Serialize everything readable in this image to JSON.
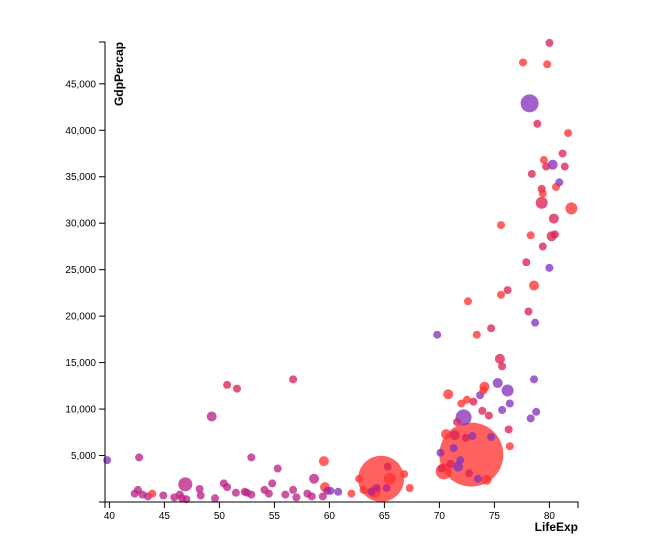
{
  "chart_data": {
    "type": "scatter",
    "title": "",
    "xlabel": "LifeExp",
    "ylabel": "GdpPercap",
    "xlim": [
      39.6,
      82.6
    ],
    "ylim": [
      0,
      49500
    ],
    "x_ticks": [
      40,
      45,
      50,
      55,
      60,
      65,
      70,
      75,
      80
    ],
    "y_ticks": [
      5000,
      10000,
      15000,
      20000,
      25000,
      30000,
      35000,
      40000,
      45000
    ],
    "x_tick_labels": [
      "40",
      "45",
      "50",
      "55",
      "60",
      "65",
      "70",
      "75",
      "80"
    ],
    "y_tick_labels": [
      "5,000",
      "10,000",
      "15,000",
      "20,000",
      "25,000",
      "30,000",
      "35,000",
      "40,000",
      "45,000"
    ],
    "grid": false,
    "legend": "none",
    "colors": {
      "red": "#ff3333",
      "crimson": "#dd2255",
      "magenta": "#bb2288",
      "purple": "#8833bb"
    },
    "points": [
      {
        "x": 39.8,
        "y": 4500,
        "size": 4,
        "color": "purple"
      },
      {
        "x": 42.3,
        "y": 900,
        "size": 4,
        "color": "magenta"
      },
      {
        "x": 42.6,
        "y": 1300,
        "size": 4,
        "color": "magenta"
      },
      {
        "x": 42.7,
        "y": 4800,
        "size": 4,
        "color": "magenta"
      },
      {
        "x": 43.0,
        "y": 800,
        "size": 4,
        "color": "magenta"
      },
      {
        "x": 43.5,
        "y": 600,
        "size": 4,
        "color": "magenta"
      },
      {
        "x": 43.9,
        "y": 900,
        "size": 4,
        "color": "red"
      },
      {
        "x": 44.9,
        "y": 700,
        "size": 4,
        "color": "magenta"
      },
      {
        "x": 45.9,
        "y": 500,
        "size": 4,
        "color": "magenta"
      },
      {
        "x": 46.4,
        "y": 800,
        "size": 4,
        "color": "magenta"
      },
      {
        "x": 46.6,
        "y": 400,
        "size": 4,
        "color": "magenta"
      },
      {
        "x": 46.9,
        "y": 1900,
        "size": 7,
        "color": "magenta"
      },
      {
        "x": 47.0,
        "y": 300,
        "size": 4,
        "color": "magenta"
      },
      {
        "x": 48.2,
        "y": 1400,
        "size": 4,
        "color": "magenta"
      },
      {
        "x": 48.3,
        "y": 700,
        "size": 4,
        "color": "magenta"
      },
      {
        "x": 49.3,
        "y": 9200,
        "size": 5,
        "color": "magenta"
      },
      {
        "x": 49.6,
        "y": 400,
        "size": 4,
        "color": "magenta"
      },
      {
        "x": 50.4,
        "y": 2000,
        "size": 4,
        "color": "magenta"
      },
      {
        "x": 50.7,
        "y": 1600,
        "size": 4,
        "color": "magenta"
      },
      {
        "x": 50.7,
        "y": 12600,
        "size": 4,
        "color": "crimson"
      },
      {
        "x": 51.5,
        "y": 1000,
        "size": 4,
        "color": "magenta"
      },
      {
        "x": 51.6,
        "y": 12200,
        "size": 4,
        "color": "crimson"
      },
      {
        "x": 52.3,
        "y": 1100,
        "size": 4,
        "color": "magenta"
      },
      {
        "x": 52.5,
        "y": 1000,
        "size": 4,
        "color": "magenta"
      },
      {
        "x": 52.9,
        "y": 800,
        "size": 4,
        "color": "magenta"
      },
      {
        "x": 52.9,
        "y": 4800,
        "size": 4,
        "color": "magenta"
      },
      {
        "x": 54.1,
        "y": 1300,
        "size": 4,
        "color": "magenta"
      },
      {
        "x": 54.5,
        "y": 900,
        "size": 4,
        "color": "magenta"
      },
      {
        "x": 54.8,
        "y": 2000,
        "size": 4,
        "color": "magenta"
      },
      {
        "x": 55.3,
        "y": 3600,
        "size": 4,
        "color": "magenta"
      },
      {
        "x": 56.0,
        "y": 800,
        "size": 4,
        "color": "magenta"
      },
      {
        "x": 56.7,
        "y": 13200,
        "size": 4,
        "color": "crimson"
      },
      {
        "x": 56.7,
        "y": 1300,
        "size": 4,
        "color": "magenta"
      },
      {
        "x": 57.0,
        "y": 500,
        "size": 4,
        "color": "magenta"
      },
      {
        "x": 58.0,
        "y": 900,
        "size": 4,
        "color": "magenta"
      },
      {
        "x": 58.4,
        "y": 600,
        "size": 4,
        "color": "magenta"
      },
      {
        "x": 58.6,
        "y": 2500,
        "size": 5,
        "color": "magenta"
      },
      {
        "x": 59.4,
        "y": 600,
        "size": 4,
        "color": "magenta"
      },
      {
        "x": 59.5,
        "y": 4400,
        "size": 5,
        "color": "red"
      },
      {
        "x": 59.6,
        "y": 1600,
        "size": 5,
        "color": "red"
      },
      {
        "x": 59.8,
        "y": 1200,
        "size": 4,
        "color": "magenta"
      },
      {
        "x": 60.1,
        "y": 1200,
        "size": 4,
        "color": "purple"
      },
      {
        "x": 60.8,
        "y": 1100,
        "size": 4,
        "color": "purple"
      },
      {
        "x": 62.0,
        "y": 900,
        "size": 4,
        "color": "red"
      },
      {
        "x": 62.7,
        "y": 2500,
        "size": 4,
        "color": "red"
      },
      {
        "x": 63.1,
        "y": 1300,
        "size": 4,
        "color": "red"
      },
      {
        "x": 63.8,
        "y": 1100,
        "size": 4,
        "color": "magenta"
      },
      {
        "x": 64.1,
        "y": 1100,
        "size": 6,
        "color": "red"
      },
      {
        "x": 64.3,
        "y": 1500,
        "size": 4,
        "color": "magenta"
      },
      {
        "x": 64.7,
        "y": 2500,
        "size": 23,
        "color": "red"
      },
      {
        "x": 65.2,
        "y": 1500,
        "size": 4,
        "color": "magenta"
      },
      {
        "x": 65.3,
        "y": 3800,
        "size": 4,
        "color": "crimson"
      },
      {
        "x": 65.5,
        "y": 2500,
        "size": 6,
        "color": "red"
      },
      {
        "x": 66.8,
        "y": 3000,
        "size": 4,
        "color": "red"
      },
      {
        "x": 67.3,
        "y": 1500,
        "size": 4,
        "color": "red"
      },
      {
        "x": 69.8,
        "y": 18000,
        "size": 4,
        "color": "purple"
      },
      {
        "x": 70.1,
        "y": 5300,
        "size": 4,
        "color": "purple"
      },
      {
        "x": 70.2,
        "y": 3600,
        "size": 4,
        "color": "crimson"
      },
      {
        "x": 70.4,
        "y": 3300,
        "size": 8,
        "color": "red"
      },
      {
        "x": 70.6,
        "y": 7300,
        "size": 5,
        "color": "red"
      },
      {
        "x": 70.8,
        "y": 11600,
        "size": 5,
        "color": "red"
      },
      {
        "x": 71.0,
        "y": 4100,
        "size": 4,
        "color": "crimson"
      },
      {
        "x": 71.3,
        "y": 5800,
        "size": 4,
        "color": "purple"
      },
      {
        "x": 71.4,
        "y": 7200,
        "size": 5,
        "color": "crimson"
      },
      {
        "x": 71.6,
        "y": 8600,
        "size": 4,
        "color": "crimson"
      },
      {
        "x": 71.7,
        "y": 3800,
        "size": 5,
        "color": "purple"
      },
      {
        "x": 71.9,
        "y": 4500,
        "size": 4,
        "color": "purple"
      },
      {
        "x": 72.0,
        "y": 10600,
        "size": 4,
        "color": "red"
      },
      {
        "x": 72.2,
        "y": 9100,
        "size": 8,
        "color": "purple"
      },
      {
        "x": 72.4,
        "y": 6900,
        "size": 4,
        "color": "crimson"
      },
      {
        "x": 72.5,
        "y": 11000,
        "size": 4,
        "color": "red"
      },
      {
        "x": 72.6,
        "y": 21600,
        "size": 4,
        "color": "red"
      },
      {
        "x": 72.7,
        "y": 3100,
        "size": 4,
        "color": "crimson"
      },
      {
        "x": 72.9,
        "y": 5100,
        "size": 32,
        "color": "red"
      },
      {
        "x": 73.0,
        "y": 7100,
        "size": 4,
        "color": "purple"
      },
      {
        "x": 73.1,
        "y": 10800,
        "size": 4,
        "color": "crimson"
      },
      {
        "x": 73.4,
        "y": 18000,
        "size": 4,
        "color": "red"
      },
      {
        "x": 73.5,
        "y": 2500,
        "size": 4,
        "color": "purple"
      },
      {
        "x": 73.7,
        "y": 11500,
        "size": 4,
        "color": "purple"
      },
      {
        "x": 73.9,
        "y": 9800,
        "size": 4,
        "color": "crimson"
      },
      {
        "x": 74.0,
        "y": 12000,
        "size": 4,
        "color": "red"
      },
      {
        "x": 74.1,
        "y": 12400,
        "size": 5,
        "color": "red"
      },
      {
        "x": 74.3,
        "y": 2400,
        "size": 5,
        "color": "red"
      },
      {
        "x": 74.5,
        "y": 9300,
        "size": 4,
        "color": "crimson"
      },
      {
        "x": 74.7,
        "y": 7000,
        "size": 4,
        "color": "purple"
      },
      {
        "x": 74.7,
        "y": 18700,
        "size": 4,
        "color": "crimson"
      },
      {
        "x": 75.3,
        "y": 12800,
        "size": 5,
        "color": "purple"
      },
      {
        "x": 75.5,
        "y": 15400,
        "size": 5,
        "color": "crimson"
      },
      {
        "x": 75.6,
        "y": 29800,
        "size": 4,
        "color": "red"
      },
      {
        "x": 75.6,
        "y": 22300,
        "size": 4,
        "color": "red"
      },
      {
        "x": 75.7,
        "y": 14600,
        "size": 4,
        "color": "crimson"
      },
      {
        "x": 75.7,
        "y": 9900,
        "size": 4,
        "color": "purple"
      },
      {
        "x": 76.2,
        "y": 12000,
        "size": 6,
        "color": "purple"
      },
      {
        "x": 76.2,
        "y": 22800,
        "size": 4,
        "color": "crimson"
      },
      {
        "x": 76.3,
        "y": 7800,
        "size": 4,
        "color": "crimson"
      },
      {
        "x": 76.4,
        "y": 10600,
        "size": 4,
        "color": "purple"
      },
      {
        "x": 76.4,
        "y": 6000,
        "size": 4,
        "color": "red"
      },
      {
        "x": 77.6,
        "y": 47300,
        "size": 4,
        "color": "red"
      },
      {
        "x": 77.9,
        "y": 25800,
        "size": 4,
        "color": "crimson"
      },
      {
        "x": 78.1,
        "y": 20500,
        "size": 4,
        "color": "crimson"
      },
      {
        "x": 78.2,
        "y": 42900,
        "size": 9,
        "color": "purple"
      },
      {
        "x": 78.3,
        "y": 28700,
        "size": 4,
        "color": "red"
      },
      {
        "x": 78.3,
        "y": 9000,
        "size": 4,
        "color": "purple"
      },
      {
        "x": 78.4,
        "y": 35300,
        "size": 4,
        "color": "crimson"
      },
      {
        "x": 78.6,
        "y": 23300,
        "size": 5,
        "color": "red"
      },
      {
        "x": 78.6,
        "y": 13200,
        "size": 4,
        "color": "purple"
      },
      {
        "x": 78.7,
        "y": 19300,
        "size": 4,
        "color": "purple"
      },
      {
        "x": 78.8,
        "y": 9700,
        "size": 4,
        "color": "purple"
      },
      {
        "x": 78.9,
        "y": 40700,
        "size": 4,
        "color": "crimson"
      },
      {
        "x": 79.3,
        "y": 33700,
        "size": 4,
        "color": "crimson"
      },
      {
        "x": 79.3,
        "y": 32200,
        "size": 6,
        "color": "crimson"
      },
      {
        "x": 79.4,
        "y": 33200,
        "size": 4,
        "color": "red"
      },
      {
        "x": 79.4,
        "y": 27500,
        "size": 4,
        "color": "crimson"
      },
      {
        "x": 79.5,
        "y": 36800,
        "size": 4,
        "color": "red"
      },
      {
        "x": 79.7,
        "y": 36100,
        "size": 4,
        "color": "crimson"
      },
      {
        "x": 79.8,
        "y": 47100,
        "size": 4,
        "color": "red"
      },
      {
        "x": 80.0,
        "y": 49400,
        "size": 4,
        "color": "crimson"
      },
      {
        "x": 80.0,
        "y": 25200,
        "size": 4,
        "color": "purple"
      },
      {
        "x": 80.2,
        "y": 28600,
        "size": 5,
        "color": "crimson"
      },
      {
        "x": 80.3,
        "y": 36300,
        "size": 5,
        "color": "purple"
      },
      {
        "x": 80.4,
        "y": 30500,
        "size": 5,
        "color": "crimson"
      },
      {
        "x": 80.5,
        "y": 28800,
        "size": 4,
        "color": "crimson"
      },
      {
        "x": 80.6,
        "y": 33900,
        "size": 4,
        "color": "red"
      },
      {
        "x": 80.9,
        "y": 34400,
        "size": 4,
        "color": "purple"
      },
      {
        "x": 81.2,
        "y": 37500,
        "size": 4,
        "color": "crimson"
      },
      {
        "x": 81.4,
        "y": 36100,
        "size": 4,
        "color": "crimson"
      },
      {
        "x": 81.7,
        "y": 39700,
        "size": 4,
        "color": "red"
      },
      {
        "x": 82.0,
        "y": 31600,
        "size": 6,
        "color": "red"
      }
    ]
  }
}
